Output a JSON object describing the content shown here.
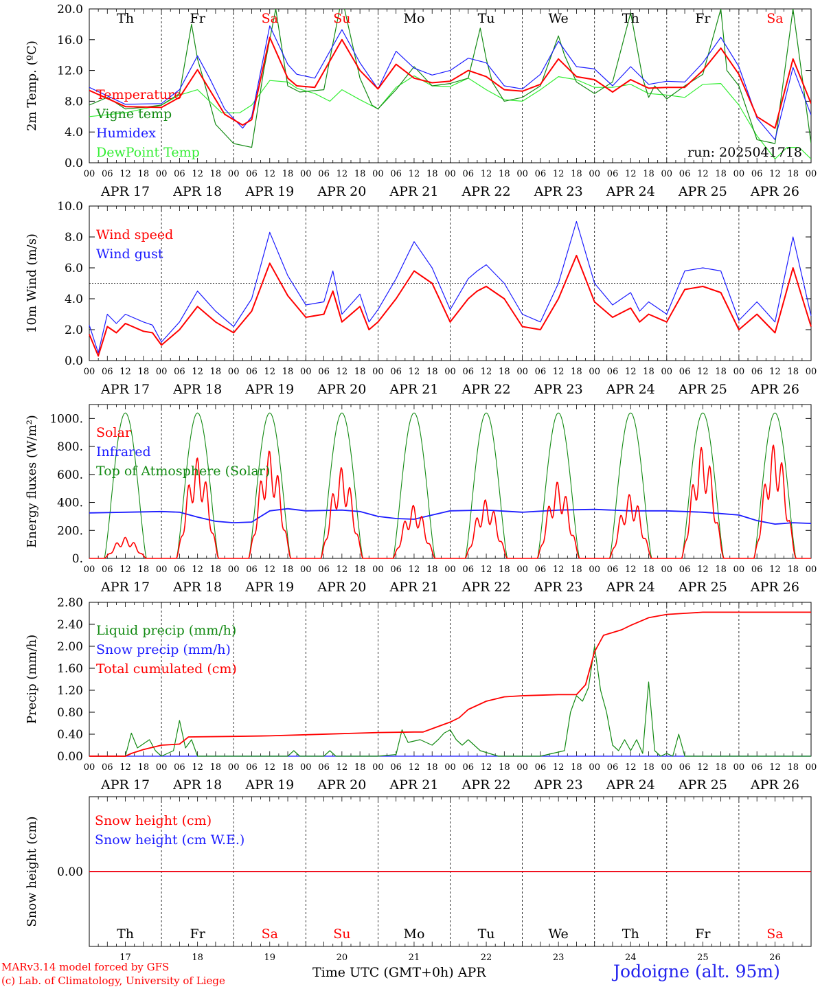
{
  "colors": {
    "red": "#ff0000",
    "dark_green": "#138a13",
    "blue": "#1c1cff",
    "light_green": "#33ee33",
    "black": "#000000"
  },
  "days": [
    "APR 17",
    "APR 18",
    "APR 19",
    "APR 20",
    "APR 21",
    "APR 22",
    "APR 23",
    "APR 24",
    "APR 25",
    "APR 26"
  ],
  "weekdays": [
    "Th",
    "Fr",
    "Sa",
    "Su",
    "Mo",
    "Tu",
    "We",
    "Th",
    "Fr",
    "Sa"
  ],
  "weekend_flags": [
    false,
    false,
    true,
    true,
    false,
    false,
    false,
    false,
    false,
    true
  ],
  "day_numbers": [
    "17",
    "18",
    "19",
    "20",
    "21",
    "22",
    "23",
    "24",
    "25",
    "26"
  ],
  "hour_labels": [
    "00",
    "06",
    "12",
    "18"
  ],
  "footer": {
    "credit_line1": "MARv3.14 model forced by GFS",
    "credit_line2": "(c) Lab. of Climatology, University of Liege",
    "time_axis_label": "Time UTC (GMT+0h) APR",
    "station": "Jodoigne (alt. 95m)"
  },
  "chart_data": [
    {
      "type": "line",
      "ylabel": "2m Temp. (ºC)",
      "ylim": [
        0,
        20
      ],
      "yticks": [
        "0.0",
        "4.0",
        "8.0",
        "12.0",
        "16.0",
        "20.0"
      ],
      "ytick_values": [
        0,
        4,
        8,
        12,
        16,
        20
      ],
      "annotation": "run: 2025041718",
      "x_unit": "hours since APR 17 00 UTC",
      "series": [
        {
          "name": "Temperature",
          "color": "#ff0000",
          "x": [
            0,
            12,
            24,
            30,
            36,
            40,
            45,
            51,
            54,
            60,
            66,
            69,
            75,
            84,
            90,
            96,
            102,
            108,
            114,
            120,
            126,
            132,
            138,
            144,
            150,
            156,
            162,
            168,
            174,
            180,
            186,
            192,
            198,
            204,
            210,
            216,
            222,
            228,
            234,
            240
          ],
          "y": [
            9.4,
            7.3,
            7.2,
            8.5,
            12.1,
            9.5,
            6.3,
            4.9,
            5.6,
            16.3,
            11.0,
            10.0,
            9.8,
            16.0,
            12.0,
            9.6,
            12.8,
            11.0,
            10.4,
            10.6,
            12.0,
            11.2,
            9.5,
            9.3,
            10.2,
            13.5,
            11.2,
            10.8,
            9.2,
            10.8,
            9.7,
            9.8,
            9.8,
            12.0,
            14.9,
            11.5,
            6.0,
            4.5,
            13.5,
            7.7
          ]
        },
        {
          "name": "Vigne temp",
          "color": "#138a13",
          "x": [
            0,
            6,
            12,
            18,
            24,
            30,
            34,
            36,
            38,
            42,
            48,
            54,
            58,
            62,
            66,
            70,
            78,
            84,
            90,
            94,
            96,
            102,
            108,
            114,
            120,
            126,
            130,
            132,
            134,
            138,
            144,
            150,
            156,
            158,
            162,
            168,
            174,
            180,
            184,
            186,
            188,
            192,
            198,
            204,
            210,
            212,
            216,
            222,
            228,
            234,
            240
          ],
          "y": [
            7.5,
            8.5,
            7.0,
            7.2,
            7.5,
            9.0,
            18.0,
            13.5,
            10.8,
            5.0,
            2.5,
            2.0,
            12.0,
            20.0,
            10.0,
            9.2,
            9.5,
            21.5,
            11.0,
            7.5,
            7.0,
            9.5,
            12.5,
            10.0,
            10.3,
            11.0,
            17.5,
            13.5,
            10.5,
            8.0,
            8.5,
            10.0,
            16.5,
            14.0,
            10.5,
            9.0,
            10.5,
            19.5,
            11.0,
            8.5,
            10.0,
            8.3,
            10.0,
            11.5,
            20.0,
            12.0,
            10.0,
            3.0,
            2.5,
            20.0,
            2.5
          ]
        },
        {
          "name": "Humidex",
          "color": "#1c1cff",
          "x": [
            0,
            12,
            24,
            30,
            36,
            40,
            45,
            51,
            54,
            60,
            66,
            69,
            75,
            84,
            90,
            96,
            102,
            108,
            114,
            120,
            126,
            132,
            138,
            144,
            150,
            156,
            162,
            168,
            174,
            180,
            186,
            192,
            198,
            204,
            210,
            216,
            222,
            228,
            234,
            240
          ],
          "y": [
            9.8,
            7.6,
            7.7,
            9.5,
            13.9,
            11.0,
            7.0,
            4.5,
            6.0,
            17.8,
            12.8,
            11.5,
            11.0,
            17.3,
            13.0,
            9.6,
            14.5,
            12.3,
            11.4,
            12.0,
            13.6,
            13.0,
            10.0,
            9.6,
            11.5,
            15.8,
            12.5,
            12.2,
            10.0,
            12.5,
            10.2,
            10.6,
            10.5,
            13.0,
            16.3,
            12.5,
            5.8,
            3.0,
            12.4,
            6.2
          ]
        },
        {
          "name": "DewPoint Temp",
          "color": "#33ee33",
          "x": [
            0,
            12,
            24,
            30,
            36,
            40,
            44,
            50,
            54,
            60,
            66,
            69,
            75,
            80,
            84,
            90,
            96,
            102,
            108,
            114,
            120,
            126,
            132,
            138,
            144,
            150,
            156,
            162,
            168,
            174,
            180,
            186,
            192,
            198,
            204,
            210,
            216,
            222,
            228,
            232,
            236,
            240
          ],
          "y": [
            6.0,
            6.5,
            7.5,
            8.8,
            9.5,
            8.0,
            6.5,
            6.5,
            7.5,
            10.7,
            10.5,
            9.7,
            9.0,
            8.0,
            9.5,
            8.2,
            7.0,
            9.8,
            11.3,
            10.0,
            9.9,
            11.0,
            9.5,
            8.2,
            8.0,
            9.5,
            11.2,
            10.8,
            9.8,
            9.8,
            10.2,
            9.0,
            8.8,
            8.5,
            10.2,
            10.3,
            7.5,
            3.5,
            0.5,
            2.0,
            2.0,
            0.5
          ]
        }
      ]
    },
    {
      "type": "line",
      "ylabel": "10m Wind (m/s)",
      "ylim": [
        0,
        10
      ],
      "yticks": [
        "0.0",
        "2.0",
        "4.0",
        "6.0",
        "8.0",
        "10.0"
      ],
      "ytick_values": [
        0,
        2,
        4,
        6,
        8,
        10
      ],
      "reference_line": 5,
      "x_unit": "hours since APR 17 00 UTC",
      "series": [
        {
          "name": "Wind speed",
          "color": "#ff0000",
          "x": [
            0,
            3,
            6,
            9,
            12,
            18,
            21,
            24,
            30,
            36,
            42,
            48,
            54,
            60,
            66,
            72,
            78,
            81,
            84,
            90,
            93,
            96,
            102,
            108,
            114,
            120,
            126,
            129,
            132,
            138,
            144,
            150,
            156,
            162,
            168,
            174,
            180,
            183,
            186,
            192,
            198,
            204,
            210,
            216,
            222,
            228,
            234,
            240
          ],
          "y": [
            1.7,
            0.3,
            2.2,
            1.8,
            2.4,
            1.9,
            1.8,
            1.0,
            2.0,
            3.5,
            2.5,
            1.8,
            3.2,
            6.3,
            4.2,
            2.8,
            3.0,
            4.5,
            2.5,
            3.5,
            2.0,
            2.5,
            4.0,
            5.8,
            5.0,
            2.5,
            4.0,
            4.5,
            4.8,
            4.0,
            2.2,
            2.0,
            4.0,
            6.8,
            3.8,
            2.8,
            3.4,
            2.5,
            3.0,
            2.5,
            4.6,
            4.8,
            4.4,
            2.0,
            3.0,
            1.8,
            6.0,
            2.2
          ]
        },
        {
          "name": "Wind gust",
          "color": "#1c1cff",
          "x": [
            0,
            3,
            6,
            9,
            12,
            18,
            21,
            24,
            30,
            36,
            42,
            48,
            54,
            60,
            66,
            72,
            78,
            81,
            84,
            90,
            93,
            96,
            102,
            108,
            114,
            120,
            126,
            129,
            132,
            138,
            144,
            150,
            156,
            162,
            168,
            174,
            180,
            183,
            186,
            192,
            198,
            204,
            210,
            216,
            222,
            228,
            234,
            240
          ],
          "y": [
            2.3,
            0.5,
            3.0,
            2.4,
            3.0,
            2.5,
            2.3,
            1.2,
            2.5,
            4.5,
            3.2,
            2.2,
            4.0,
            8.3,
            5.5,
            3.6,
            3.8,
            5.8,
            3.0,
            4.3,
            2.5,
            3.3,
            5.3,
            7.7,
            6.0,
            3.3,
            5.3,
            5.8,
            6.2,
            5.0,
            3.0,
            2.5,
            5.0,
            9.0,
            5.0,
            3.6,
            4.4,
            3.2,
            3.8,
            3.0,
            5.8,
            6.0,
            5.8,
            2.6,
            3.8,
            2.5,
            8.0,
            2.9
          ]
        }
      ]
    },
    {
      "type": "line",
      "ylabel": "Energy fluxes (W/m²)",
      "ylim": [
        0,
        1100
      ],
      "yticks": [
        "0.",
        "200.",
        "400.",
        "600.",
        "800.",
        "1000."
      ],
      "ytick_values": [
        0,
        200,
        400,
        600,
        800,
        1000
      ],
      "x_unit": "hours since APR 17 00 UTC",
      "series": [
        {
          "name": "Solar",
          "color": "#ff0000",
          "peaks": [
            150,
            720,
            770,
            650,
            380,
            420,
            550,
            460,
            800,
            820
          ]
        },
        {
          "name": "Infrared",
          "color": "#1c1cff",
          "x": [
            0,
            12,
            24,
            30,
            36,
            42,
            48,
            54,
            60,
            66,
            72,
            84,
            90,
            96,
            102,
            108,
            120,
            132,
            144,
            156,
            168,
            180,
            192,
            204,
            210,
            216,
            222,
            228,
            234,
            240
          ],
          "y": [
            325,
            330,
            335,
            330,
            295,
            265,
            255,
            260,
            340,
            355,
            340,
            345,
            335,
            300,
            285,
            280,
            340,
            345,
            330,
            345,
            350,
            340,
            340,
            330,
            320,
            310,
            270,
            245,
            255,
            250
          ]
        },
        {
          "name": "Top of Atmosphere (Solar)",
          "color": "#138a13",
          "peak": 1040
        }
      ]
    },
    {
      "type": "line",
      "ylabel": "Precip (mm/h)",
      "ylim": [
        0,
        2.8
      ],
      "yticks": [
        "0.00",
        "0.40",
        "0.80",
        "1.20",
        "1.60",
        "2.00",
        "2.40",
        "2.80"
      ],
      "ytick_values": [
        0,
        0.4,
        0.8,
        1.2,
        1.6,
        2.0,
        2.4,
        2.8
      ],
      "x_unit": "hours since APR 17 00 UTC",
      "series": [
        {
          "name": "Liquid precip (mm/h)",
          "color": "#138a13",
          "x": [
            0,
            12,
            14,
            16,
            20,
            22,
            24,
            28,
            30,
            32,
            34,
            36,
            48,
            66,
            68,
            70,
            78,
            80,
            82,
            90,
            96,
            102,
            104,
            106,
            110,
            114,
            116,
            118,
            120,
            122,
            124,
            126,
            130,
            136,
            150,
            158,
            160,
            162,
            164,
            166,
            168,
            170,
            172,
            174,
            176,
            178,
            180,
            182,
            184,
            186,
            188,
            190,
            192,
            194,
            196,
            198,
            240
          ],
          "y": [
            0,
            0,
            0.42,
            0.15,
            0.3,
            0.1,
            0,
            0.1,
            0.65,
            0.15,
            0.3,
            0,
            0,
            0,
            0.1,
            0,
            0,
            0.1,
            0,
            0,
            0,
            0.03,
            0.48,
            0.25,
            0.3,
            0.2,
            0.3,
            0.42,
            0.48,
            0.3,
            0.2,
            0.3,
            0.1,
            0,
            0,
            0.1,
            0.8,
            1.1,
            1.0,
            1.25,
            2.0,
            1.2,
            0.8,
            0.2,
            0.1,
            0.3,
            0.1,
            0.3,
            0.05,
            1.35,
            0.1,
            0,
            0.05,
            0,
            0.4,
            0,
            0
          ]
        },
        {
          "name": "Snow precip (mm/h)",
          "color": "#1c1cff",
          "x": [
            0,
            240
          ],
          "y": [
            0,
            0
          ]
        },
        {
          "name": "Total cumulated (cm)",
          "color": "#ff0000",
          "x": [
            0,
            12,
            14,
            18,
            24,
            30,
            33,
            48,
            60,
            72,
            84,
            96,
            108,
            111,
            114,
            120,
            123,
            126,
            132,
            138,
            144,
            150,
            156,
            162,
            165,
            168,
            171,
            174,
            177,
            180,
            186,
            192,
            198,
            204,
            240
          ],
          "y": [
            0,
            0,
            0.05,
            0.12,
            0.2,
            0.22,
            0.35,
            0.36,
            0.37,
            0.39,
            0.41,
            0.43,
            0.44,
            0.44,
            0.5,
            0.62,
            0.7,
            0.85,
            1.0,
            1.08,
            1.1,
            1.11,
            1.12,
            1.12,
            1.3,
            1.9,
            2.2,
            2.25,
            2.3,
            2.38,
            2.52,
            2.58,
            2.6,
            2.62,
            2.62
          ]
        }
      ]
    },
    {
      "type": "line",
      "ylabel": "Snow height (cm)",
      "yticks": [
        "0.00"
      ],
      "ytick_values": [
        0
      ],
      "x_unit": "hours since APR 17 00 UTC",
      "series": [
        {
          "name": "Snow height (cm)",
          "color": "#ff0000",
          "x": [
            0,
            240
          ],
          "y": [
            0,
            0
          ]
        },
        {
          "name": "Snow height (cm W.E.)",
          "color": "#1c1cff",
          "x": [
            0,
            240
          ],
          "y": [
            0,
            0
          ]
        }
      ]
    }
  ]
}
